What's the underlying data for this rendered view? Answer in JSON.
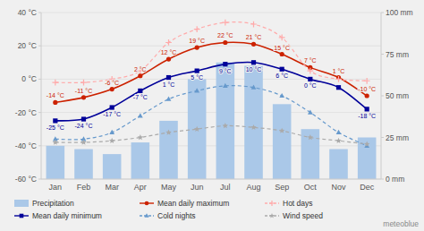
{
  "chart_data": {
    "type": "combo",
    "categories": [
      "Jan",
      "Feb",
      "Mar",
      "Apr",
      "May",
      "Jun",
      "Jul",
      "Aug",
      "Sep",
      "Oct",
      "Nov",
      "Dec"
    ],
    "series": [
      {
        "name": "Precipitation",
        "type": "bar",
        "axis": "y2",
        "color": "#aac8e8",
        "values": [
          20,
          18,
          15,
          22,
          35,
          60,
          70,
          68,
          45,
          30,
          18,
          25
        ]
      },
      {
        "name": "Mean daily maximum",
        "type": "line",
        "color": "#cc2200",
        "marker": "circle",
        "line_style": "solid",
        "values": [
          -14,
          -11,
          -6,
          2,
          12,
          19,
          22,
          21,
          15,
          7,
          1,
          -10
        ],
        "data_labels": true,
        "value_labels": [
          "-14 °C",
          "-11 °C",
          "-6 °C",
          "2 °C",
          "12 °C",
          "19 °C",
          "22 °C",
          "21 °C",
          "15 °C",
          "7 °C",
          "1 °C",
          "-10 °C"
        ]
      },
      {
        "name": "Hot days",
        "type": "line",
        "color": "#ffaaaa",
        "marker": "plus",
        "line_style": "dashed",
        "values": [
          -2,
          -2,
          0,
          5,
          22,
          30,
          34,
          33,
          25,
          5,
          0,
          -1
        ]
      },
      {
        "name": "Mean daily minimum",
        "type": "line",
        "color": "#000099",
        "marker": "square",
        "line_style": "solid",
        "values": [
          -25,
          -24,
          -17,
          -7,
          1,
          5,
          9,
          10,
          6,
          0,
          -5,
          -18
        ],
        "data_labels": true,
        "value_labels": [
          "-25 °C",
          "-24 °C",
          "-17 °C",
          "-7 °C",
          "1 °C",
          "5 °C",
          "9 °C",
          "10 °C",
          "6 °C",
          "0 °C",
          null,
          "-18 °C"
        ]
      },
      {
        "name": "Cold nights",
        "type": "line",
        "color": "#6699cc",
        "marker": "triangle",
        "line_style": "dashed",
        "values": [
          -36,
          -36,
          -32,
          -22,
          -12,
          -7,
          -4,
          -5,
          -10,
          -20,
          -32,
          -40
        ]
      },
      {
        "name": "Wind speed",
        "type": "line",
        "color": "#aaaaaa",
        "marker": "star",
        "line_style": "dashed",
        "values": [
          -38,
          -38,
          -37,
          -35,
          -32,
          -30,
          -28,
          -29,
          -31,
          -35,
          -37,
          -39
        ]
      }
    ],
    "ylim": [
      -60,
      40
    ],
    "yticks": [
      {
        "value": -60,
        "label": "-60 °C"
      },
      {
        "value": -40,
        "label": "-40 °C"
      },
      {
        "value": -20,
        "label": "-20 °C"
      },
      {
        "value": 0,
        "label": "0 °C"
      },
      {
        "value": 20,
        "label": "20 °C"
      },
      {
        "value": 40,
        "label": "40 °C"
      }
    ],
    "y2lim": [
      0,
      100
    ],
    "y2ticks": [
      {
        "value": 0,
        "label": "0 mm"
      },
      {
        "value": 25,
        "label": "25 mm"
      },
      {
        "value": 50,
        "label": "50 mm"
      },
      {
        "value": 75,
        "label": "75 mm"
      },
      {
        "value": 100,
        "label": "100 mm"
      }
    ],
    "grid": true,
    "legend": "bottom",
    "annotations": [
      "meteoblue"
    ]
  }
}
